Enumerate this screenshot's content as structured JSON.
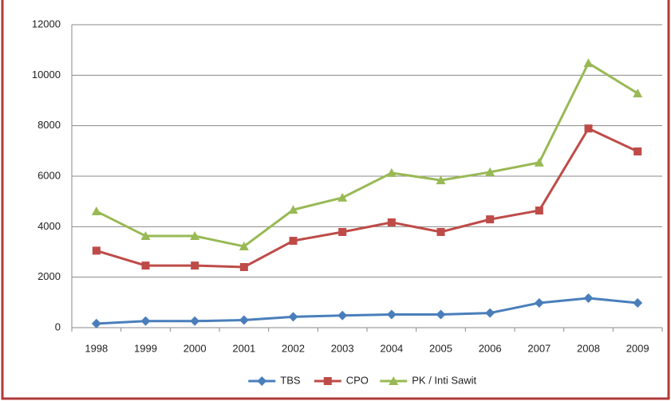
{
  "chart_data": {
    "type": "line",
    "categories": [
      "1998",
      "1999",
      "2000",
      "2001",
      "2002",
      "2003",
      "2004",
      "2005",
      "2006",
      "2007",
      "2008",
      "2009"
    ],
    "series": [
      {
        "name": "TBS",
        "color": "#4a7ebb",
        "marker": "diamond",
        "values": [
          160,
          260,
          260,
          300,
          430,
          480,
          520,
          520,
          580,
          980,
          1170,
          980
        ]
      },
      {
        "name": "CPO",
        "color": "#be4b48",
        "marker": "square",
        "values": [
          3050,
          2460,
          2460,
          2400,
          3440,
          3790,
          4170,
          3790,
          4290,
          4640,
          7890,
          6980
        ]
      },
      {
        "name": "PK / Inti Sawit",
        "color": "#98b954",
        "marker": "triangle",
        "values": [
          4610,
          3630,
          3630,
          3220,
          4670,
          5150,
          6130,
          5840,
          6160,
          6540,
          10480,
          9280
        ]
      }
    ],
    "ylim": [
      0,
      12000
    ],
    "yticks": [
      0,
      2000,
      4000,
      6000,
      8000,
      10000,
      12000
    ],
    "grid": true,
    "legend": "bottom"
  }
}
